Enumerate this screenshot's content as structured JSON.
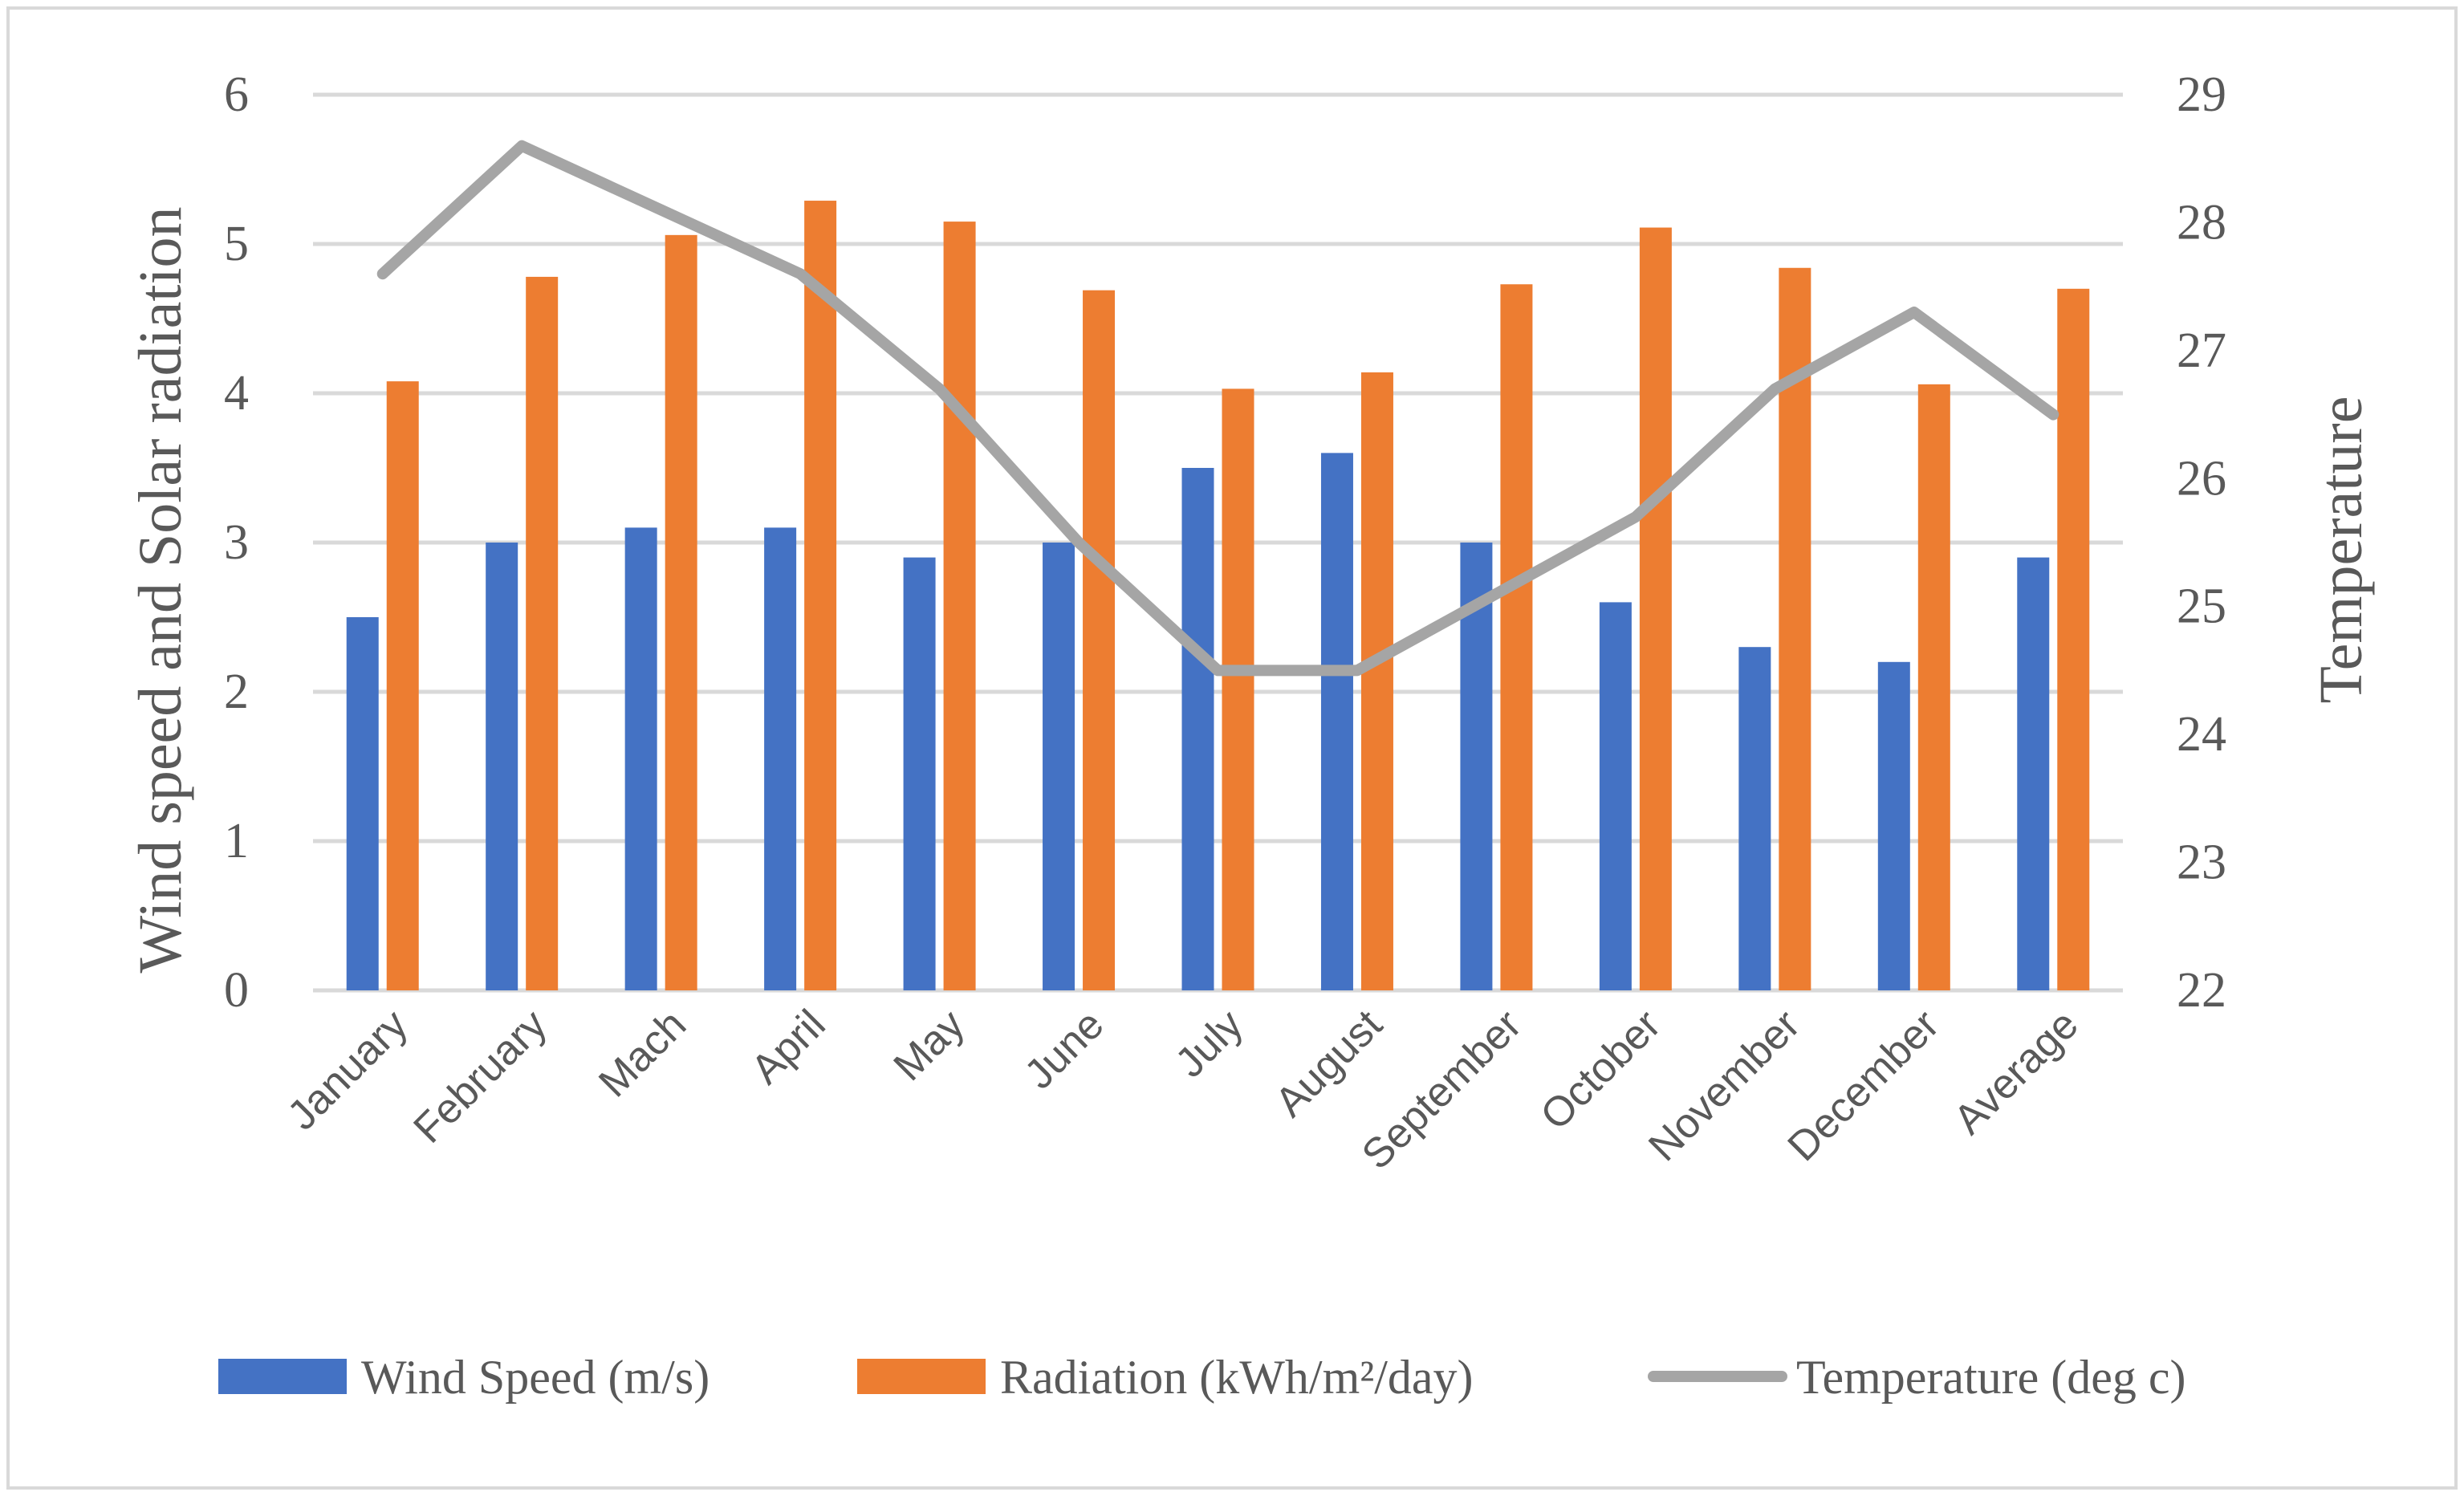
{
  "chart_data": {
    "type": "bar",
    "categories": [
      "January",
      "February",
      "Mach",
      "April",
      "May",
      "June",
      "July",
      "August",
      "September",
      "October",
      "November",
      "December",
      "Average"
    ],
    "series": [
      {
        "name": "Wind Speed (m/s)",
        "type": "bar",
        "axis": "left",
        "color": "#4472c4",
        "values": [
          2.5,
          3.0,
          3.1,
          3.1,
          2.9,
          3.0,
          3.5,
          3.6,
          3.0,
          2.6,
          2.3,
          2.2,
          2.9
        ]
      },
      {
        "name": "Radiation (kWh/m²/day)",
        "type": "bar",
        "axis": "left",
        "color": "#ed7d31",
        "values": [
          4.08,
          4.78,
          5.06,
          5.29,
          5.15,
          4.69,
          4.03,
          4.14,
          4.73,
          5.11,
          4.84,
          4.06,
          4.7
        ]
      },
      {
        "name": "Temperature (deg c)",
        "type": "line",
        "axis": "right",
        "color": "#a5a5a5",
        "values": [
          27.6,
          28.6,
          28.1,
          27.6,
          26.7,
          25.5,
          24.5,
          24.5,
          25.1,
          25.7,
          26.7,
          27.3,
          26.5
        ]
      }
    ],
    "ylabel": "Wind speed and Solar radiation",
    "y2label": "Temperature",
    "ylim": [
      0,
      6
    ],
    "y2lim": [
      22,
      29
    ],
    "yticks": [
      "0",
      "1",
      "2",
      "3",
      "4",
      "5",
      "6"
    ],
    "y2ticks": [
      "22",
      "23",
      "24",
      "25",
      "26",
      "27",
      "28",
      "29"
    ],
    "grid": true,
    "legend_position": "bottom"
  }
}
